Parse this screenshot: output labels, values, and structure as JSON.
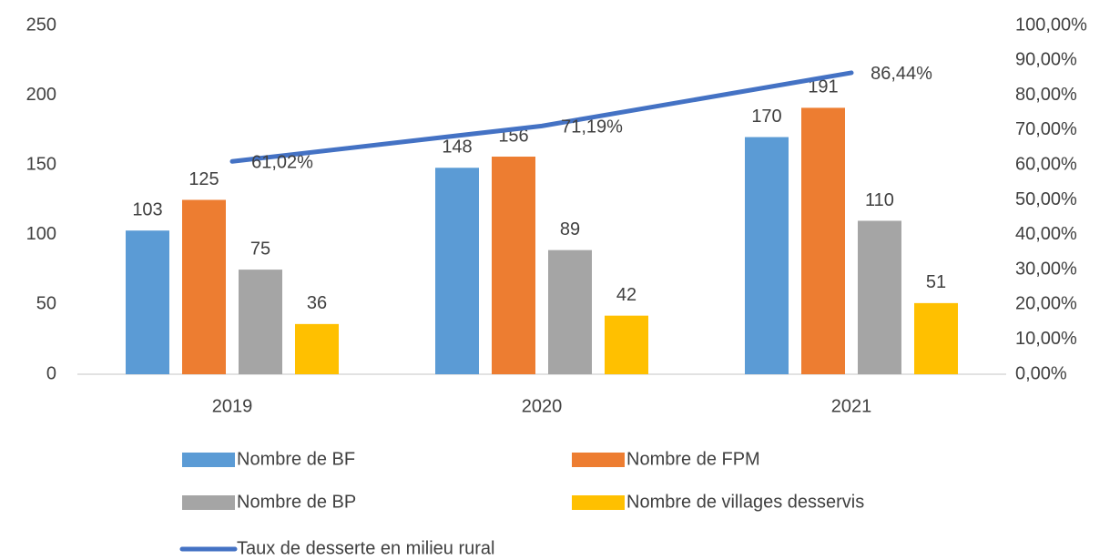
{
  "chart_data": {
    "type": "bar",
    "categories": [
      "2019",
      "2020",
      "2021"
    ],
    "series": [
      {
        "name": "Nombre de BF",
        "color": "#5b9bd5",
        "values": [
          103,
          148,
          170
        ]
      },
      {
        "name": "Nombre de FPM",
        "color": "#ed7d31",
        "values": [
          125,
          156,
          191
        ]
      },
      {
        "name": "Nombre de BP",
        "color": "#a5a5a5",
        "values": [
          75,
          89,
          110
        ]
      },
      {
        "name": "Nombre de villages desservis",
        "color": "#ffc000",
        "values": [
          36,
          42,
          51
        ]
      },
      {
        "name": "Taux de desserte en milieu rural",
        "color": "#4472c4",
        "type": "line",
        "axis": "y2",
        "values": [
          61.02,
          71.19,
          86.44
        ],
        "value_labels": [
          "61,02%",
          "71,19%",
          "86,44%"
        ]
      }
    ],
    "ylim": [
      0,
      250
    ],
    "yticks": [
      0,
      50,
      100,
      150,
      200,
      250
    ],
    "y2lim": [
      0,
      100
    ],
    "y2ticks": [
      {
        "value": 0,
        "label": "0,00%"
      },
      {
        "value": 10,
        "label": "10,00%"
      },
      {
        "value": 20,
        "label": "20,00%"
      },
      {
        "value": 30,
        "label": "30,00%"
      },
      {
        "value": 40,
        "label": "40,00%"
      },
      {
        "value": 50,
        "label": "50,00%"
      },
      {
        "value": 60,
        "label": "60,00%"
      },
      {
        "value": 70,
        "label": "70,00%"
      },
      {
        "value": 80,
        "label": "80,00%"
      },
      {
        "value": 90,
        "label": "90,00%"
      },
      {
        "value": 100,
        "label": "100,00%"
      }
    ],
    "grid": false,
    "legend": "bottom"
  }
}
